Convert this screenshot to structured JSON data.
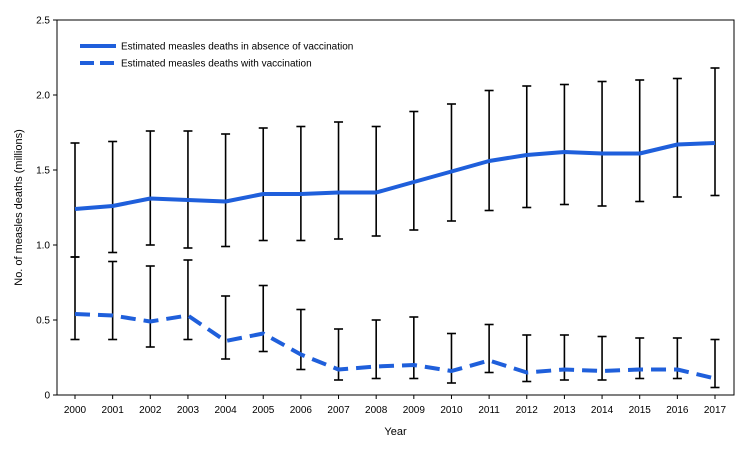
{
  "chart_data": {
    "type": "line",
    "title": "",
    "xlabel": "Year",
    "ylabel": "No. of measles deaths (millions)",
    "x": [
      "2000",
      "2001",
      "2002",
      "2003",
      "2004",
      "2005",
      "2006",
      "2007",
      "2008",
      "2009",
      "2010",
      "2011",
      "2012",
      "2013",
      "2014",
      "2015",
      "2016",
      "2017"
    ],
    "ylim": [
      0,
      2.5
    ],
    "yticks": [
      "0",
      "0.5",
      "1.0",
      "1.5",
      "2.0",
      "2.5"
    ],
    "grid": false,
    "legend_position": "top-left",
    "series": [
      {
        "name": "Estimated measles deaths in absence of vaccination",
        "line_style": "solid",
        "color": "#1f5fdb",
        "values": [
          1.24,
          1.26,
          1.31,
          1.3,
          1.29,
          1.34,
          1.34,
          1.35,
          1.35,
          1.42,
          1.49,
          1.56,
          1.6,
          1.62,
          1.61,
          1.61,
          1.67,
          1.68
        ],
        "lower": [
          0.92,
          0.95,
          1.0,
          0.98,
          0.99,
          1.03,
          1.03,
          1.04,
          1.06,
          1.1,
          1.16,
          1.23,
          1.25,
          1.27,
          1.26,
          1.29,
          1.32,
          1.33
        ],
        "upper": [
          1.68,
          1.69,
          1.76,
          1.76,
          1.74,
          1.78,
          1.79,
          1.82,
          1.79,
          1.89,
          1.94,
          2.03,
          2.06,
          2.07,
          2.09,
          2.1,
          2.11,
          2.18
        ]
      },
      {
        "name": "Estimated measles deaths with vaccination",
        "line_style": "dashed",
        "color": "#1f5fdb",
        "values": [
          0.54,
          0.53,
          0.49,
          0.53,
          0.36,
          0.41,
          0.27,
          0.17,
          0.19,
          0.2,
          0.16,
          0.23,
          0.15,
          0.17,
          0.16,
          0.17,
          0.17,
          0.11
        ],
        "lower": [
          0.37,
          0.37,
          0.32,
          0.37,
          0.24,
          0.29,
          0.17,
          0.1,
          0.11,
          0.11,
          0.08,
          0.15,
          0.09,
          0.1,
          0.1,
          0.11,
          0.11,
          0.05
        ],
        "upper": [
          0.92,
          0.89,
          0.86,
          0.9,
          0.66,
          0.73,
          0.57,
          0.44,
          0.5,
          0.52,
          0.41,
          0.47,
          0.4,
          0.4,
          0.39,
          0.38,
          0.38,
          0.37
        ]
      }
    ]
  }
}
